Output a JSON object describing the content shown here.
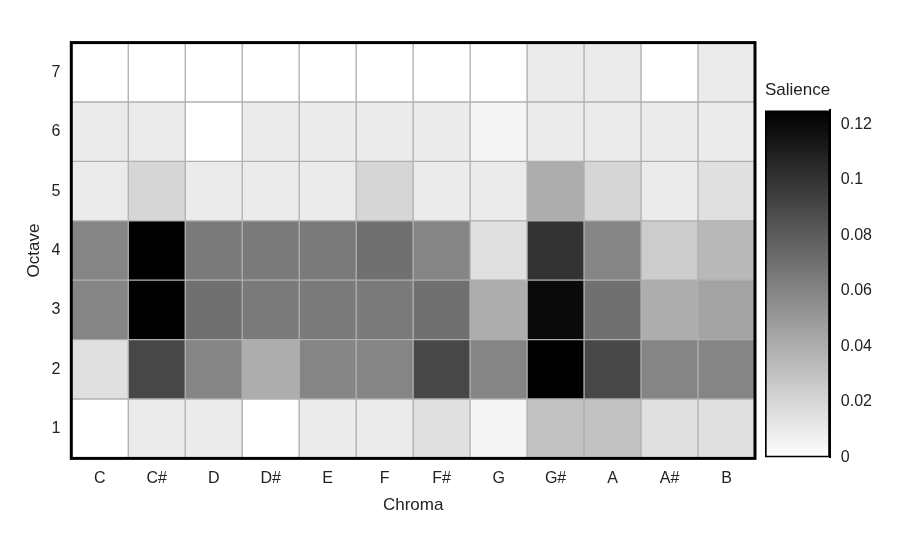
{
  "chart_data": {
    "type": "heatmap",
    "x_label": "Chroma",
    "y_label": "Octave",
    "categories": [
      "C",
      "C#",
      "D",
      "D#",
      "E",
      "F",
      "F#",
      "G",
      "G#",
      "A",
      "A#",
      "B"
    ],
    "rows": [
      1,
      2,
      3,
      4,
      5,
      6,
      7
    ],
    "ylim": [
      0.5,
      7.5
    ],
    "yticks": [
      1,
      2,
      3,
      4,
      5,
      6,
      7
    ],
    "grid": false,
    "cells": [
      [
        0,
        0.01,
        0.01,
        0,
        0.01,
        0.01,
        0.015,
        0.005,
        0.03,
        0.03,
        0.015,
        0.015
      ],
      [
        0.015,
        0.09,
        0.06,
        0.04,
        0.06,
        0.06,
        0.09,
        0.06,
        0.125,
        0.09,
        0.06,
        0.06
      ],
      [
        0.06,
        0.125,
        0.07,
        0.065,
        0.065,
        0.065,
        0.07,
        0.04,
        0.12,
        0.07,
        0.04,
        0.045
      ],
      [
        0.06,
        0.125,
        0.065,
        0.065,
        0.065,
        0.07,
        0.06,
        0.015,
        0.1,
        0.06,
        0.025,
        0.035
      ],
      [
        0.01,
        0.02,
        0.01,
        0.01,
        0.01,
        0.02,
        0.01,
        0.01,
        0.04,
        0.02,
        0.01,
        0.015
      ],
      [
        0.01,
        0.01,
        0,
        0.01,
        0.01,
        0.01,
        0.01,
        0.005,
        0.01,
        0.01,
        0.01,
        0.01
      ],
      [
        0,
        0,
        0,
        0,
        0,
        0,
        0,
        0,
        0.01,
        0.01,
        0,
        0.01
      ]
    ],
    "colorbar": {
      "label": "Salience",
      "range": [
        0,
        0.125
      ],
      "ticks": [
        0,
        0.02,
        0.04,
        0.06,
        0.08,
        0.1,
        0.12
      ]
    }
  }
}
